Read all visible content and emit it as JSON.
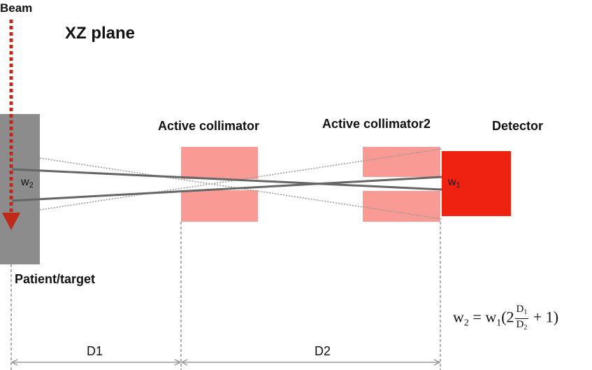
{
  "diagram": {
    "beam_label": "Beam",
    "plane_title": "XZ plane",
    "patient_label": "Patient/target",
    "collimator1_label": "Active collimator",
    "collimator2_label": "Active collimator2",
    "detector_label": "Detector",
    "w1_label": "w",
    "w1_sub": "1",
    "w2_label": "w",
    "w2_sub": "2",
    "d1_label": "D1",
    "d2_label": "D2",
    "formula": {
      "lhs": "w",
      "lhs_sub": "2",
      "eq": " = ",
      "w": "w",
      "w_sub": "1",
      "open": "(2",
      "num": "D",
      "num_sub": "1",
      "den": "D",
      "den_sub": "2",
      "close": " + 1)"
    },
    "colors": {
      "beam": "#c0281a",
      "patient": "#8c8c8c",
      "collimator": "#f99a94",
      "detector": "#ee2211",
      "ray_solid": "#666666",
      "ray_dotted": "#9a9a9a",
      "dimension": "#9a9a9a"
    }
  }
}
